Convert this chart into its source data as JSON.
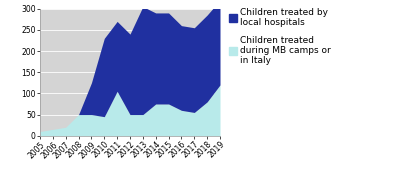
{
  "years": [
    2005,
    2006,
    2007,
    2008,
    2009,
    2010,
    2011,
    2012,
    2013,
    2014,
    2015,
    2016,
    2017,
    2018,
    2019
  ],
  "local_hospitals": [
    0,
    0,
    0,
    0,
    75,
    185,
    165,
    190,
    255,
    215,
    215,
    200,
    200,
    205,
    200
  ],
  "mb_camps": [
    10,
    15,
    20,
    50,
    50,
    45,
    105,
    50,
    50,
    75,
    75,
    60,
    55,
    80,
    120
  ],
  "color_local": "#2030a0",
  "color_mb": "#b8eaea",
  "bg_color": "#d4d4d4",
  "fig_bg": "#ffffff",
  "ylim": [
    0,
    300
  ],
  "yticks": [
    0,
    50,
    100,
    150,
    200,
    250,
    300
  ],
  "legend_local": "Children treated by\nlocal hospitals",
  "legend_mb": "Children treated\nduring MB camps or\nin Italy",
  "tick_fontsize": 5.5,
  "legend_fontsize": 6.5
}
